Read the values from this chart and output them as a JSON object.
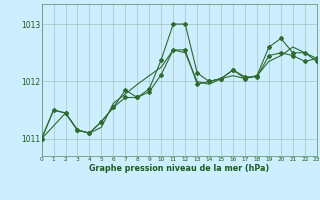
{
  "title": "Graphe pression niveau de la mer (hPa)",
  "bg_color": "#cceeff",
  "grid_color": "#aacccc",
  "line_color": "#2d6a2d",
  "marker_color": "#2d6a2d",
  "ylim": [
    1010.7,
    1013.35
  ],
  "xlim": [
    0,
    23
  ],
  "yticks": [
    1011,
    1012,
    1013
  ],
  "xticks": [
    0,
    1,
    2,
    3,
    4,
    5,
    6,
    7,
    8,
    9,
    10,
    11,
    12,
    13,
    14,
    15,
    16,
    17,
    18,
    19,
    20,
    21,
    22,
    23
  ],
  "series1_x": [
    0,
    1,
    2,
    3,
    4,
    5,
    6,
    7,
    8,
    9,
    10,
    11,
    12,
    13,
    14,
    15,
    16,
    17,
    18,
    19,
    20,
    21,
    22,
    23
  ],
  "series1_y": [
    1011.0,
    1011.5,
    1011.45,
    1011.15,
    1011.1,
    1011.2,
    1011.62,
    1011.78,
    1011.95,
    1012.1,
    1012.25,
    1012.55,
    1012.5,
    1012.0,
    1011.95,
    1012.05,
    1012.1,
    1012.05,
    1012.1,
    1012.35,
    1012.45,
    1012.6,
    1012.5,
    1012.4
  ],
  "series2_x": [
    0,
    1,
    2,
    3,
    4,
    5,
    6,
    7,
    8,
    9,
    10,
    11,
    12,
    13,
    14,
    15,
    16,
    17,
    18,
    19,
    20,
    21,
    22,
    23
  ],
  "series2_y": [
    1011.0,
    1011.5,
    1011.45,
    1011.15,
    1011.1,
    1011.3,
    1011.55,
    1011.85,
    1011.72,
    1011.87,
    1012.38,
    1013.0,
    1013.0,
    1012.15,
    1012.0,
    1012.05,
    1012.2,
    1012.05,
    1012.1,
    1012.6,
    1012.75,
    1012.5,
    1012.5,
    1012.35
  ],
  "series3_x": [
    0,
    2,
    3,
    4,
    5,
    6,
    7,
    8,
    9,
    10,
    11,
    12,
    13,
    14,
    15,
    16,
    17,
    18,
    19,
    20,
    21,
    22,
    23
  ],
  "series3_y": [
    1011.0,
    1011.45,
    1011.15,
    1011.1,
    1011.3,
    1011.55,
    1011.72,
    1011.72,
    1011.82,
    1012.12,
    1012.55,
    1012.55,
    1011.95,
    1012.0,
    1012.05,
    1012.2,
    1012.08,
    1012.08,
    1012.45,
    1012.5,
    1012.45,
    1012.35,
    1012.4
  ]
}
